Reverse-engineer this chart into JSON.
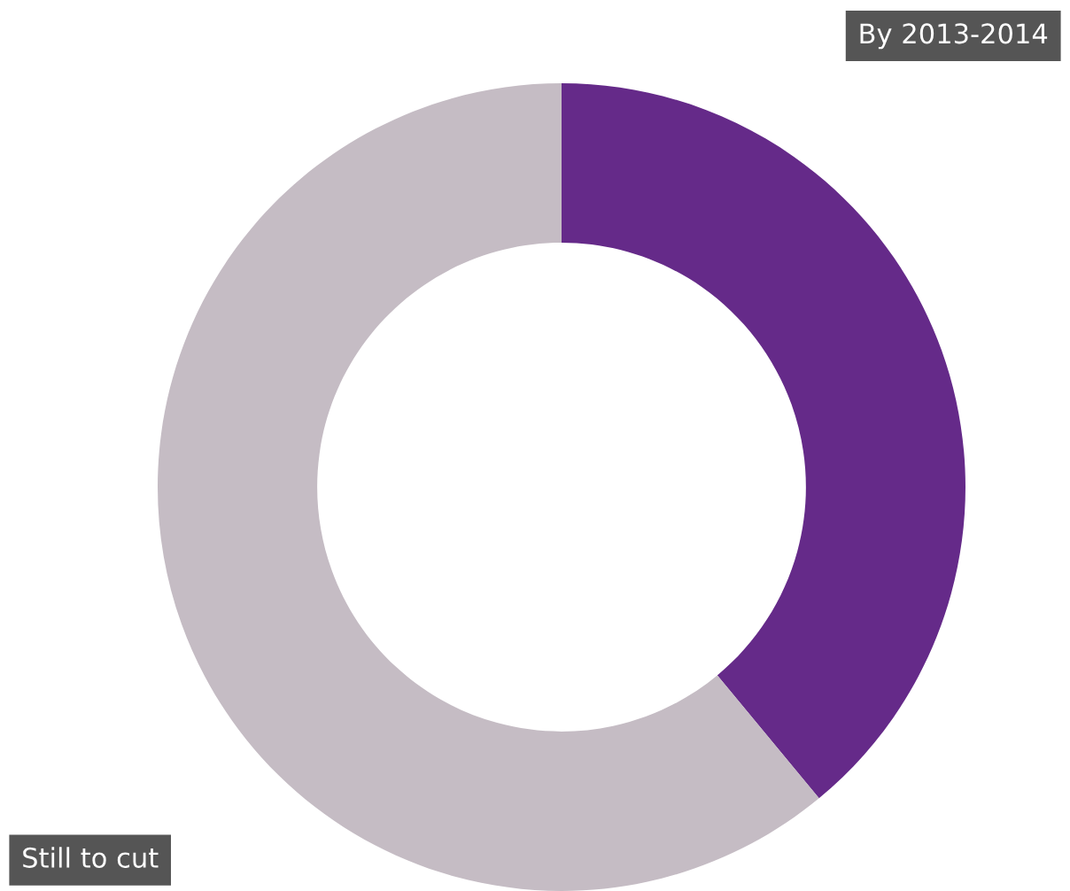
{
  "chart_data": {
    "type": "donut",
    "categories": [
      "By 2013-2014",
      "Still to cut"
    ],
    "values": [
      39,
      61
    ],
    "colors": [
      "#652a89",
      "#c5bcc4"
    ]
  }
}
